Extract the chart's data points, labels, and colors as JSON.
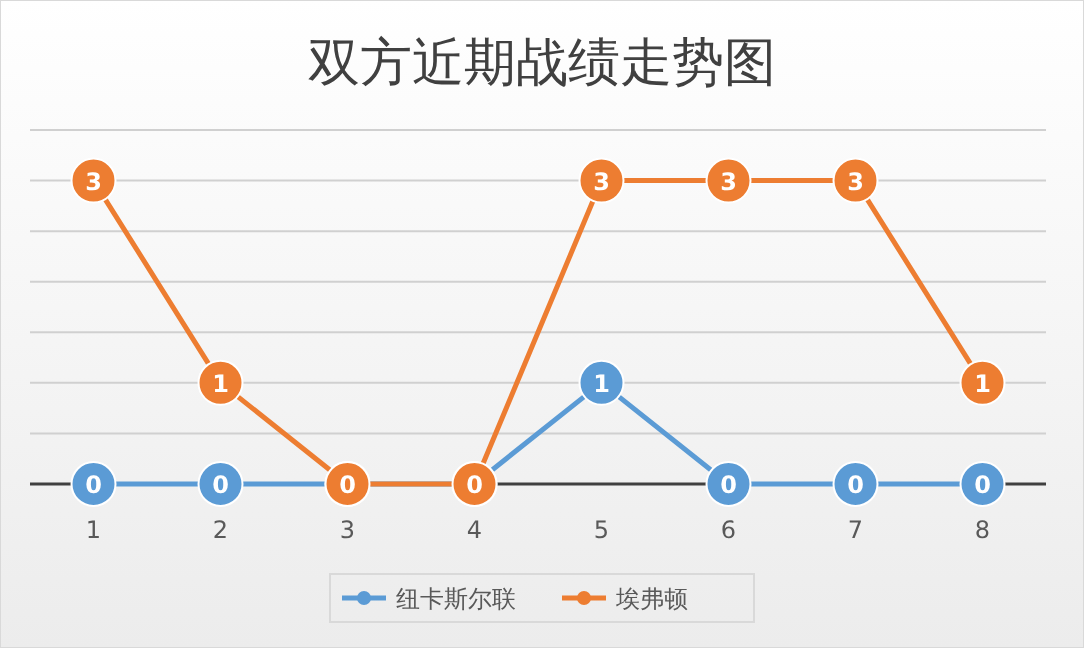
{
  "chart_data": {
    "type": "line",
    "title": "双方近期战绩走势图",
    "categories": [
      "1",
      "2",
      "3",
      "4",
      "5",
      "6",
      "7",
      "8"
    ],
    "series": [
      {
        "name": "纽卡斯尔联",
        "color": "#5b9bd5",
        "values": [
          0,
          0,
          0,
          0,
          1,
          0,
          0,
          0
        ],
        "value_labels": [
          "0",
          "0",
          null,
          null,
          "1",
          "0",
          "0",
          "0"
        ]
      },
      {
        "name": "埃弗顿",
        "color": "#ed7d31",
        "values": [
          3,
          1,
          0,
          0,
          3,
          3,
          3,
          1
        ]
      }
    ],
    "ylim": [
      0,
      3.5
    ],
    "yticks": [
      {
        "value": 0,
        "label": null
      },
      {
        "value": 0.5,
        "label": null
      },
      {
        "value": 1,
        "label": null
      },
      {
        "value": 1.5,
        "label": null
      },
      {
        "value": 2,
        "label": null
      },
      {
        "value": 2.5,
        "label": null
      },
      {
        "value": 3,
        "label": null
      },
      {
        "value": 3.5,
        "label": null
      }
    ],
    "grid": "y",
    "tick_labels": "x",
    "legend": "bottom",
    "marker": "circle",
    "line_style": "solid",
    "data_labels": true
  }
}
